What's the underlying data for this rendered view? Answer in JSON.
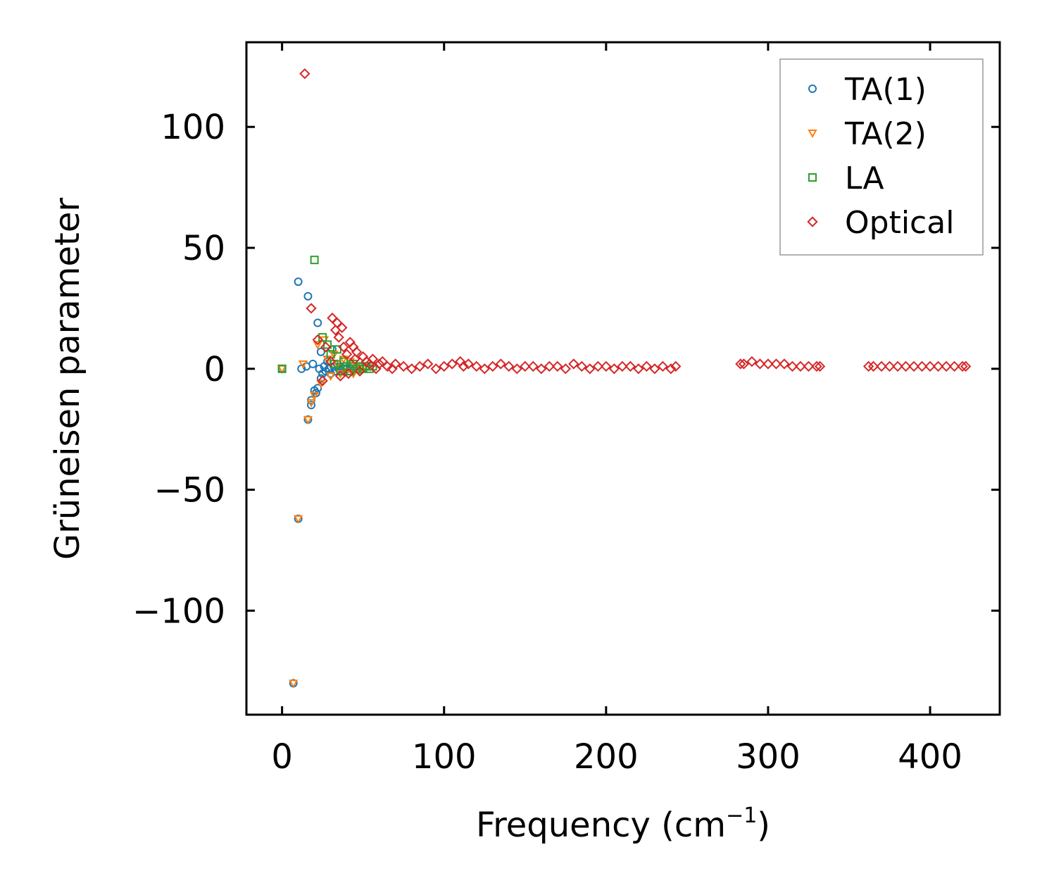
{
  "chart_data": {
    "type": "scatter",
    "title": "",
    "xlabel": "Frequency (cm",
    "xlabel_sup": "−1",
    "xlabel_suffix": ")",
    "ylabel": "Grüneisen parameter",
    "xlim": [
      -22,
      443
    ],
    "ylim": [
      -143,
      135
    ],
    "xticks": [
      0,
      100,
      200,
      300,
      400
    ],
    "xtick_labels": [
      "0",
      "100",
      "200",
      "300",
      "400"
    ],
    "yticks": [
      -100,
      -50,
      0,
      50,
      100
    ],
    "ytick_labels": [
      "−100",
      "−50",
      "0",
      "50",
      "100"
    ],
    "grid": false,
    "legend_position": "top-right",
    "series": [
      {
        "name": "TA(1)",
        "marker": "circle",
        "color": "#1f77b4",
        "points": [
          [
            0,
            0
          ],
          [
            7,
            -130
          ],
          [
            10,
            -62
          ],
          [
            10,
            36
          ],
          [
            12,
            0
          ],
          [
            15,
            1
          ],
          [
            16,
            -21
          ],
          [
            16,
            30
          ],
          [
            18,
            -13
          ],
          [
            18,
            -15
          ],
          [
            19,
            2
          ],
          [
            20,
            -9
          ],
          [
            21,
            -10
          ],
          [
            22,
            19
          ],
          [
            22,
            -8
          ],
          [
            23,
            0
          ],
          [
            24,
            7
          ],
          [
            24,
            -4
          ],
          [
            25,
            -2
          ],
          [
            26,
            1
          ],
          [
            27,
            -1
          ],
          [
            28,
            3
          ],
          [
            29,
            0
          ],
          [
            30,
            -2
          ],
          [
            31,
            8
          ],
          [
            32,
            1
          ],
          [
            33,
            -1
          ],
          [
            34,
            2
          ],
          [
            35,
            0
          ],
          [
            36,
            1
          ],
          [
            37,
            -1
          ],
          [
            38,
            0
          ],
          [
            39,
            1
          ],
          [
            40,
            0
          ],
          [
            41,
            -1
          ],
          [
            42,
            2
          ],
          [
            43,
            0
          ],
          [
            44,
            1
          ],
          [
            46,
            0
          ],
          [
            48,
            1
          ],
          [
            50,
            0
          ],
          [
            52,
            1
          ]
        ]
      },
      {
        "name": "TA(2)",
        "marker": "triangle-down",
        "color": "#ff7f0e",
        "points": [
          [
            0,
            0
          ],
          [
            7,
            -130
          ],
          [
            10,
            -62
          ],
          [
            13,
            2
          ],
          [
            16,
            -21
          ],
          [
            18,
            -14
          ],
          [
            20,
            -11
          ],
          [
            22,
            10
          ],
          [
            24,
            -6
          ],
          [
            26,
            12
          ],
          [
            28,
            4
          ],
          [
            30,
            -3
          ],
          [
            32,
            6
          ],
          [
            34,
            2
          ],
          [
            36,
            -2
          ],
          [
            38,
            4
          ],
          [
            40,
            -1
          ],
          [
            42,
            3
          ],
          [
            44,
            -2
          ],
          [
            46,
            1
          ],
          [
            48,
            -1
          ],
          [
            50,
            0
          ]
        ]
      },
      {
        "name": "LA",
        "marker": "square",
        "color": "#2ca02c",
        "points": [
          [
            0,
            0
          ],
          [
            20,
            45
          ],
          [
            25,
            13
          ],
          [
            28,
            10
          ],
          [
            30,
            6
          ],
          [
            32,
            2
          ],
          [
            34,
            8
          ],
          [
            36,
            -1
          ],
          [
            38,
            3
          ],
          [
            40,
            1
          ],
          [
            42,
            -1
          ],
          [
            44,
            2
          ],
          [
            46,
            0
          ],
          [
            48,
            1
          ],
          [
            50,
            0
          ],
          [
            52,
            1
          ],
          [
            54,
            0
          ],
          [
            56,
            1
          ]
        ]
      },
      {
        "name": "Optical",
        "marker": "diamond",
        "color": "#d62728",
        "points": [
          [
            14,
            122
          ],
          [
            18,
            25
          ],
          [
            22,
            12
          ],
          [
            25,
            -5
          ],
          [
            27,
            9
          ],
          [
            30,
            3
          ],
          [
            31,
            21
          ],
          [
            33,
            16
          ],
          [
            34,
            19
          ],
          [
            35,
            13
          ],
          [
            36,
            -3
          ],
          [
            37,
            17
          ],
          [
            38,
            9
          ],
          [
            40,
            6
          ],
          [
            41,
            -2
          ],
          [
            42,
            11
          ],
          [
            44,
            9
          ],
          [
            45,
            4
          ],
          [
            46,
            7
          ],
          [
            48,
            -1
          ],
          [
            50,
            5
          ],
          [
            52,
            3
          ],
          [
            54,
            2
          ],
          [
            56,
            4
          ],
          [
            58,
            0
          ],
          [
            60,
            2
          ],
          [
            62,
            3
          ],
          [
            65,
            1
          ],
          [
            68,
            0
          ],
          [
            70,
            2
          ],
          [
            75,
            1
          ],
          [
            80,
            0
          ],
          [
            85,
            1
          ],
          [
            90,
            2
          ],
          [
            95,
            0
          ],
          [
            100,
            1
          ],
          [
            105,
            2
          ],
          [
            110,
            3
          ],
          [
            112,
            1
          ],
          [
            115,
            2
          ],
          [
            120,
            1
          ],
          [
            125,
            0
          ],
          [
            130,
            1
          ],
          [
            135,
            2
          ],
          [
            140,
            1
          ],
          [
            145,
            0
          ],
          [
            150,
            1
          ],
          [
            155,
            1
          ],
          [
            160,
            0
          ],
          [
            165,
            1
          ],
          [
            170,
            1
          ],
          [
            175,
            0
          ],
          [
            180,
            2
          ],
          [
            185,
            1
          ],
          [
            190,
            0
          ],
          [
            195,
            1
          ],
          [
            200,
            1
          ],
          [
            205,
            0
          ],
          [
            210,
            1
          ],
          [
            215,
            1
          ],
          [
            220,
            0
          ],
          [
            225,
            1
          ],
          [
            230,
            0
          ],
          [
            235,
            1
          ],
          [
            240,
            0
          ],
          [
            243,
            1
          ],
          [
            283,
            2
          ],
          [
            285,
            2
          ],
          [
            290,
            3
          ],
          [
            295,
            2
          ],
          [
            300,
            2
          ],
          [
            305,
            2
          ],
          [
            310,
            2
          ],
          [
            315,
            1
          ],
          [
            320,
            1
          ],
          [
            325,
            1
          ],
          [
            330,
            1
          ],
          [
            332,
            1
          ],
          [
            362,
            1
          ],
          [
            365,
            1
          ],
          [
            370,
            1
          ],
          [
            375,
            1
          ],
          [
            380,
            1
          ],
          [
            385,
            1
          ],
          [
            390,
            1
          ],
          [
            395,
            1
          ],
          [
            400,
            1
          ],
          [
            405,
            1
          ],
          [
            410,
            1
          ],
          [
            415,
            1
          ],
          [
            420,
            1
          ],
          [
            422,
            1
          ]
        ]
      }
    ]
  }
}
